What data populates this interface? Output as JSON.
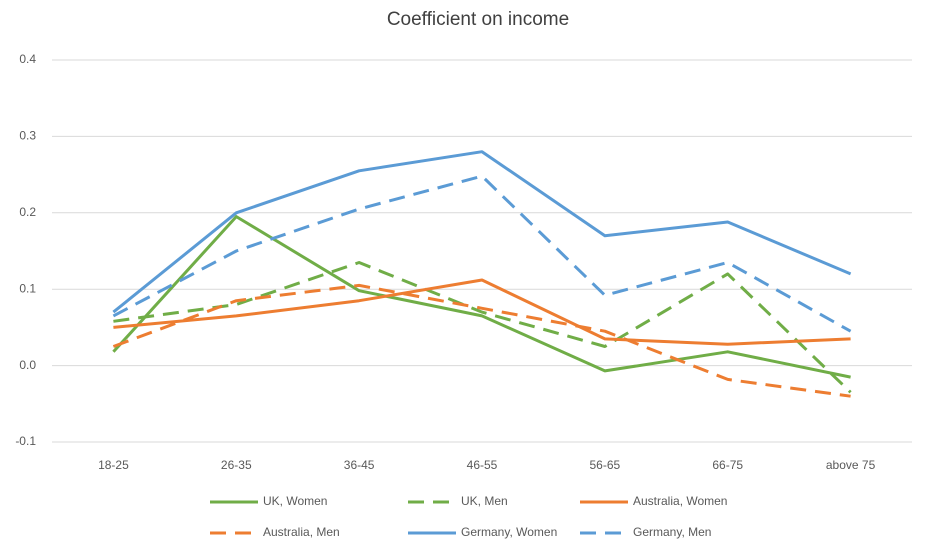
{
  "chart_data": {
    "type": "line",
    "title": "Coefficient on income",
    "categories": [
      "18-25",
      "26-35",
      "36-45",
      "46-55",
      "56-65",
      "66-75",
      "above 75"
    ],
    "series": [
      {
        "name": "UK, Women",
        "color": "#70ad47",
        "style": "solid",
        "values": [
          0.018,
          0.195,
          0.098,
          0.065,
          -0.007,
          0.018,
          -0.015
        ]
      },
      {
        "name": "UK, Men",
        "color": "#70ad47",
        "style": "dashed",
        "values": [
          0.058,
          0.08,
          0.135,
          0.07,
          0.025,
          0.12,
          -0.035
        ]
      },
      {
        "name": "Australia, Women",
        "color": "#ed7d31",
        "style": "solid",
        "values": [
          0.05,
          0.065,
          0.085,
          0.112,
          0.035,
          0.028,
          0.035
        ]
      },
      {
        "name": "Australia, Men",
        "color": "#ed7d31",
        "style": "dashed",
        "values": [
          0.025,
          0.085,
          0.105,
          0.075,
          0.045,
          -0.018,
          -0.04
        ]
      },
      {
        "name": "Germany, Women",
        "color": "#5b9bd5",
        "style": "solid",
        "values": [
          0.07,
          0.2,
          0.255,
          0.28,
          0.17,
          0.188,
          0.12
        ]
      },
      {
        "name": "Germany, Men",
        "color": "#5b9bd5",
        "style": "dashed",
        "values": [
          0.065,
          0.15,
          0.205,
          0.248,
          0.092,
          0.135,
          0.045
        ]
      }
    ],
    "ylim": [
      -0.1,
      0.4
    ],
    "yticks": [
      -0.1,
      {
        "value": 0,
        "label": "0.0"
      },
      0.1,
      0.2,
      0.3,
      0.4
    ],
    "grid": true,
    "legend": "bottom"
  }
}
